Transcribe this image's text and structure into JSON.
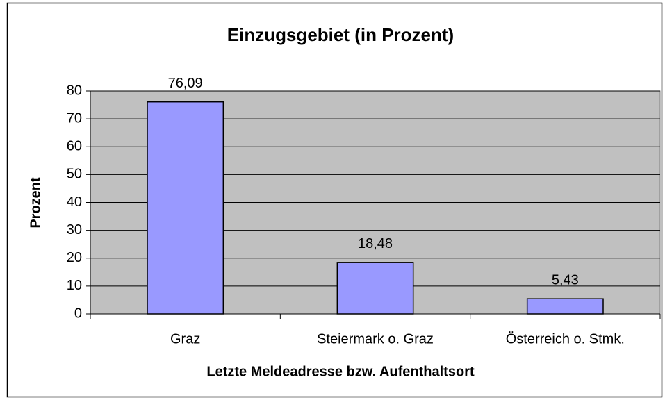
{
  "chart_data": {
    "type": "bar",
    "title": "Einzugsgebiet (in Prozent)",
    "categories": [
      "Graz",
      "Steiermark o. Graz",
      "Österreich o. Stmk."
    ],
    "values": [
      76.09,
      18.48,
      5.43
    ],
    "value_labels": [
      "76,09",
      "18,48",
      "5,43"
    ],
    "color": "#9999ff",
    "x_label": "Letzte Meldeadresse bzw. Aufenthaltsort",
    "y_label": "Prozent",
    "ylim": [
      0,
      80
    ],
    "yticks": [
      0,
      10,
      20,
      30,
      40,
      50,
      60,
      70,
      80
    ],
    "grid": true
  }
}
